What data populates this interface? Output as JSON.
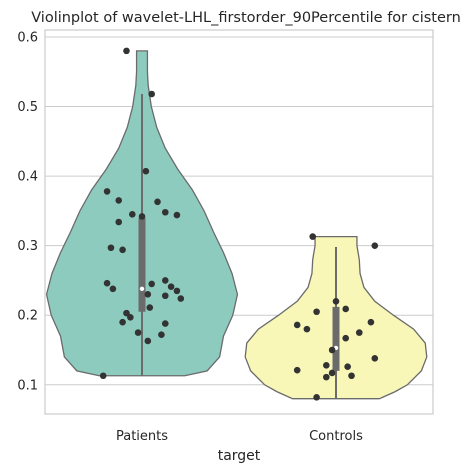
{
  "chart_data": {
    "type": "violin",
    "title": "Violinplot of wavelet-LHL_firstorder_90Percentile for cistern",
    "xlabel": "target",
    "ylabel": "",
    "ylim": [
      0.058,
      0.61
    ],
    "yticks": [
      0.1,
      0.2,
      0.3,
      0.4,
      0.5,
      0.6
    ],
    "ytick_labels": [
      "0.1",
      "0.2",
      "0.3",
      "0.4",
      "0.5",
      "0.6"
    ],
    "grid": true,
    "categories": [
      "Patients",
      "Controls"
    ],
    "colors": {
      "Patients": "#8ecbbf",
      "Controls": "#f8f7b8",
      "points": "#333333",
      "box": "#6b6b6b"
    },
    "violins": [
      {
        "category": "Patients",
        "y_min": 0.113,
        "y_max": 0.58,
        "profile": [
          [
            0.113,
            0.55
          ],
          [
            0.12,
            0.84
          ],
          [
            0.14,
            1.0
          ],
          [
            0.17,
            1.05
          ],
          [
            0.2,
            1.17
          ],
          [
            0.23,
            1.23
          ],
          [
            0.26,
            1.16
          ],
          [
            0.29,
            1.05
          ],
          [
            0.32,
            0.92
          ],
          [
            0.35,
            0.8
          ],
          [
            0.38,
            0.65
          ],
          [
            0.41,
            0.46
          ],
          [
            0.44,
            0.3
          ],
          [
            0.47,
            0.19
          ],
          [
            0.5,
            0.12
          ],
          [
            0.53,
            0.08
          ],
          [
            0.55,
            0.07
          ],
          [
            0.58,
            0.07
          ]
        ],
        "box": {
          "q1": 0.205,
          "median": 0.238,
          "q3": 0.34,
          "whisker_low": 0.113,
          "whisker_high": 0.518
        },
        "points": [
          [
            -0.08,
            0.58
          ],
          [
            0.05,
            0.518
          ],
          [
            0.02,
            0.407
          ],
          [
            -0.18,
            0.378
          ],
          [
            -0.12,
            0.365
          ],
          [
            0.08,
            0.363
          ],
          [
            -0.12,
            0.334
          ],
          [
            -0.05,
            0.345
          ],
          [
            0,
            0.342
          ],
          [
            0.12,
            0.348
          ],
          [
            0.18,
            0.344
          ],
          [
            -0.16,
            0.297
          ],
          [
            -0.1,
            0.294
          ],
          [
            -0.18,
            0.246
          ],
          [
            -0.15,
            0.238
          ],
          [
            0.05,
            0.245
          ],
          [
            0.12,
            0.25
          ],
          [
            0.15,
            0.241
          ],
          [
            0.18,
            0.235
          ],
          [
            0.03,
            0.23
          ],
          [
            0.12,
            0.228
          ],
          [
            0.2,
            0.224
          ],
          [
            0.04,
            0.211
          ],
          [
            -0.08,
            0.203
          ],
          [
            -0.06,
            0.197
          ],
          [
            -0.1,
            0.19
          ],
          [
            0.12,
            0.188
          ],
          [
            -0.02,
            0.175
          ],
          [
            0.1,
            0.172
          ],
          [
            0.03,
            0.163
          ],
          [
            -0.2,
            0.113
          ]
        ]
      },
      {
        "category": "Controls",
        "y_min": 0.08,
        "y_max": 0.313,
        "profile": [
          [
            0.08,
            0.56
          ],
          [
            0.09,
            0.76
          ],
          [
            0.1,
            0.92
          ],
          [
            0.12,
            1.1
          ],
          [
            0.14,
            1.17
          ],
          [
            0.16,
            1.15
          ],
          [
            0.18,
            1.0
          ],
          [
            0.2,
            0.74
          ],
          [
            0.22,
            0.5
          ],
          [
            0.24,
            0.36
          ],
          [
            0.26,
            0.31
          ],
          [
            0.28,
            0.3
          ],
          [
            0.3,
            0.27
          ],
          [
            0.313,
            0.27
          ]
        ],
        "box": {
          "q1": 0.12,
          "median": 0.153,
          "q3": 0.212,
          "whisker_low": 0.08,
          "whisker_high": 0.298
        },
        "points": [
          [
            -0.12,
            0.313
          ],
          [
            0.2,
            0.3
          ],
          [
            0,
            0.22
          ],
          [
            -0.1,
            0.205
          ],
          [
            0.05,
            0.209
          ],
          [
            -0.2,
            0.186
          ],
          [
            -0.15,
            0.18
          ],
          [
            0.18,
            0.19
          ],
          [
            0.12,
            0.175
          ],
          [
            0.05,
            0.167
          ],
          [
            -0.02,
            0.15
          ],
          [
            0.2,
            0.138
          ],
          [
            -0.05,
            0.128
          ],
          [
            0.06,
            0.126
          ],
          [
            -0.2,
            0.121
          ],
          [
            -0.02,
            0.117
          ],
          [
            0.08,
            0.113
          ],
          [
            -0.05,
            0.111
          ],
          [
            -0.1,
            0.082
          ]
        ]
      }
    ]
  }
}
